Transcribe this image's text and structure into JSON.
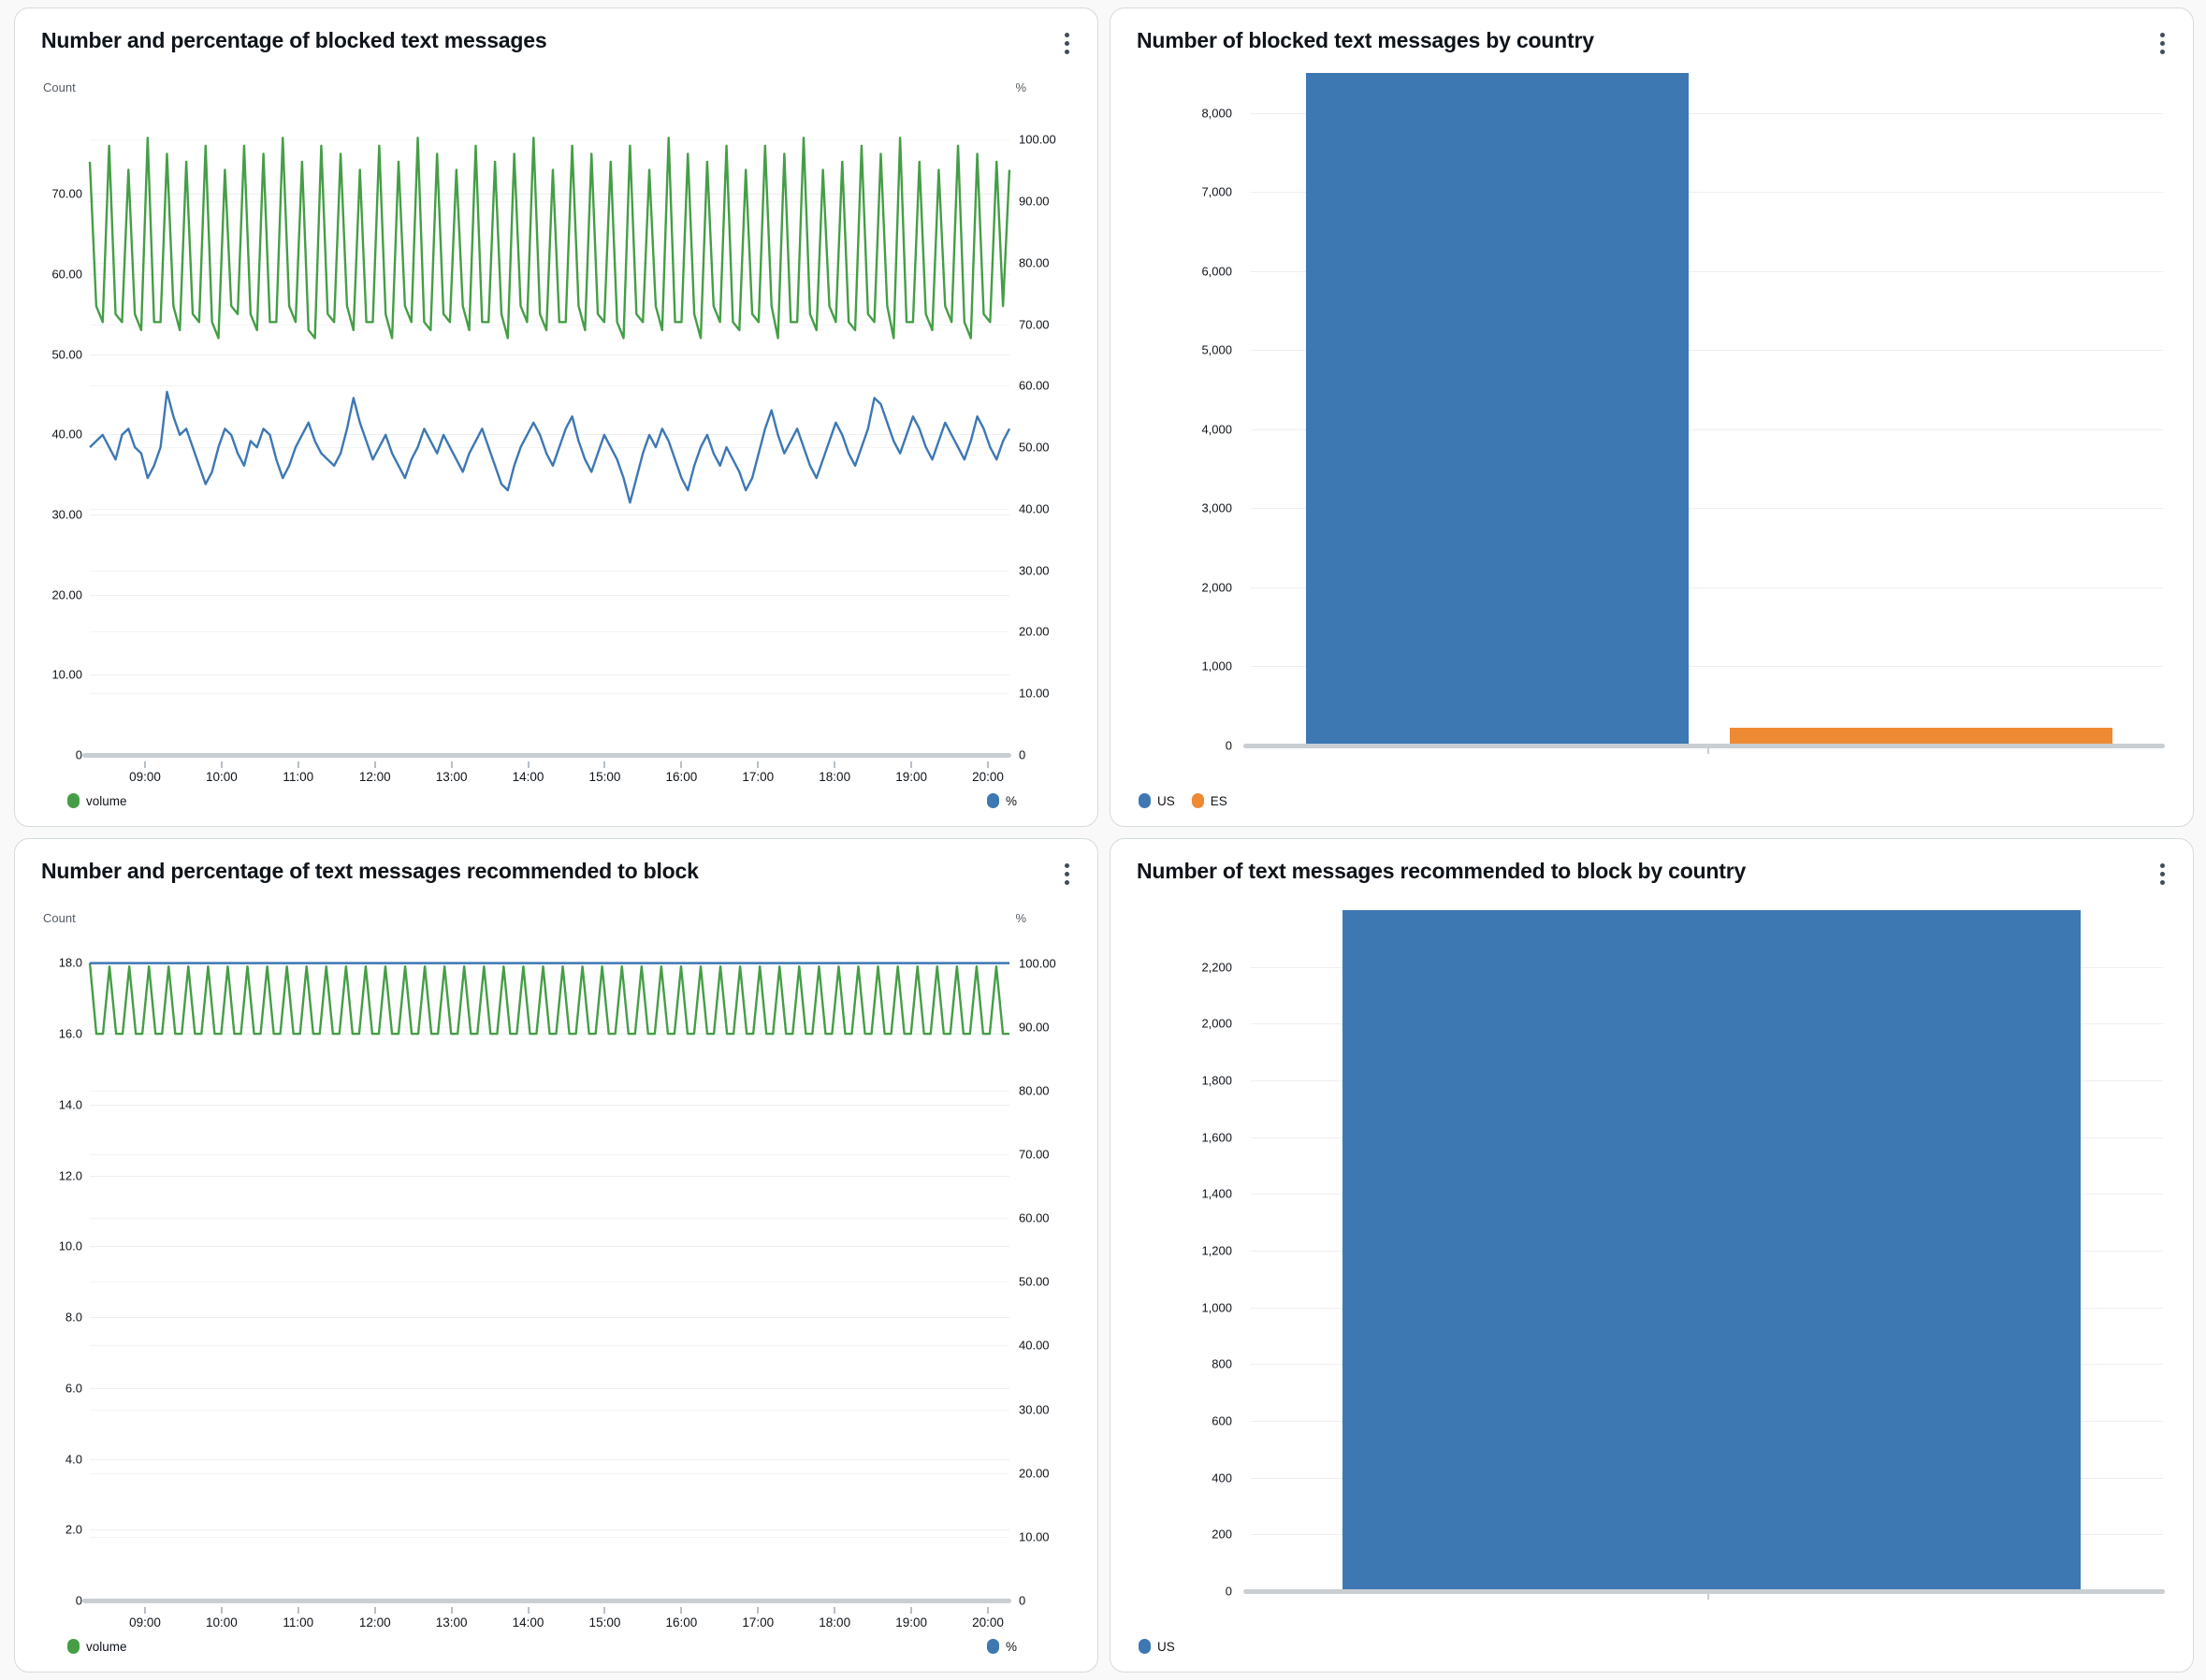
{
  "chart_data": [
    {
      "type": "line",
      "title": "Number and percentage of blocked text messages",
      "left_axis": {
        "label": "Count",
        "max": 81,
        "ticks": [
          {
            "value": 70,
            "label": "70.00"
          },
          {
            "value": 60,
            "label": "60.00"
          },
          {
            "value": 50,
            "label": "50.00"
          },
          {
            "value": 40,
            "label": "40.00"
          },
          {
            "value": 30,
            "label": "30.00"
          },
          {
            "value": 20,
            "label": "20.00"
          },
          {
            "value": 10,
            "label": "10.00"
          },
          {
            "value": 0,
            "label": "0"
          }
        ]
      },
      "right_axis": {
        "label": "%",
        "max": 105.5,
        "ticks": [
          {
            "value": 100,
            "label": "100.00"
          },
          {
            "value": 90,
            "label": "90.00"
          },
          {
            "value": 80,
            "label": "80.00"
          },
          {
            "value": 70,
            "label": "70.00"
          },
          {
            "value": 60,
            "label": "60.00"
          },
          {
            "value": 50,
            "label": "50.00"
          },
          {
            "value": 40,
            "label": "40.00"
          },
          {
            "value": 30,
            "label": "30.00"
          },
          {
            "value": 20,
            "label": "20.00"
          },
          {
            "value": 10,
            "label": "10.00"
          },
          {
            "value": 0,
            "label": "0"
          }
        ]
      },
      "x_tick_labels": [
        "09:00",
        "10:00",
        "11:00",
        "12:00",
        "13:00",
        "14:00",
        "15:00",
        "16:00",
        "17:00",
        "18:00",
        "19:00",
        "20:00"
      ],
      "x_first_pct": 6.0,
      "x_step_pct": 8.333,
      "series": [
        {
          "name": "volume",
          "axis": "left",
          "color": "#459e46",
          "values": [
            74,
            56,
            54,
            76,
            55,
            54,
            73,
            55,
            53,
            77,
            54,
            54,
            75,
            56,
            53,
            74,
            55,
            54,
            76,
            54,
            52,
            73,
            56,
            55,
            76,
            55,
            53,
            75,
            54,
            54,
            77,
            56,
            54,
            74,
            53,
            52,
            76,
            55,
            54,
            75,
            56,
            53,
            73,
            54,
            54,
            76,
            55,
            52,
            74,
            56,
            54,
            77,
            54,
            53,
            75,
            55,
            54,
            73,
            56,
            53,
            76,
            54,
            54,
            74,
            55,
            52,
            75,
            56,
            54,
            77,
            55,
            53,
            73,
            54,
            54,
            76,
            56,
            53,
            75,
            55,
            54,
            74,
            54,
            52,
            76,
            55,
            54,
            73,
            56,
            53,
            77,
            54,
            54,
            75,
            55,
            52,
            74,
            56,
            54,
            76,
            54,
            53,
            73,
            55,
            54,
            76,
            56,
            52,
            75,
            54,
            54,
            77,
            55,
            53,
            73,
            56,
            54,
            74,
            54,
            53,
            76,
            55,
            54,
            75,
            56,
            52,
            77,
            54,
            54,
            74,
            55,
            53,
            73,
            56,
            54,
            76,
            54,
            52,
            75,
            55,
            54,
            74,
            56,
            73
          ]
        },
        {
          "name": "%",
          "axis": "right",
          "color": "#3d78b3",
          "values": [
            50,
            51,
            52,
            50,
            48,
            52,
            53,
            50,
            49,
            45,
            47,
            50,
            59,
            55,
            52,
            53,
            50,
            47,
            44,
            46,
            50,
            53,
            52,
            49,
            47,
            51,
            50,
            53,
            52,
            48,
            45,
            47,
            50,
            52,
            54,
            51,
            49,
            48,
            47,
            49,
            53,
            58,
            54,
            51,
            48,
            50,
            52,
            49,
            47,
            45,
            48,
            50,
            53,
            51,
            49,
            52,
            50,
            48,
            46,
            49,
            51,
            53,
            50,
            47,
            44,
            43,
            47,
            50,
            52,
            54,
            52,
            49,
            47,
            50,
            53,
            55,
            51,
            48,
            46,
            49,
            52,
            50,
            48,
            45,
            41,
            45,
            49,
            52,
            50,
            53,
            51,
            48,
            45,
            43,
            47,
            50,
            52,
            49,
            47,
            50,
            48,
            46,
            43,
            45,
            49,
            53,
            56,
            52,
            49,
            51,
            53,
            50,
            47,
            45,
            48,
            51,
            54,
            52,
            49,
            47,
            50,
            53,
            58,
            57,
            54,
            51,
            49,
            52,
            55,
            53,
            50,
            48,
            51,
            54,
            52,
            50,
            48,
            51,
            55,
            53,
            50,
            48,
            51,
            53
          ]
        }
      ],
      "legend": [
        {
          "label": "volume",
          "color": "#459e46",
          "position": "left"
        },
        {
          "label": "%",
          "color": "#3d78b3",
          "position": "right"
        }
      ]
    },
    {
      "type": "bar",
      "title": "Number of blocked text messages by country",
      "categories": [
        "US",
        "ES"
      ],
      "values": [
        8500,
        230
      ],
      "colors": [
        "#3d78b3",
        "#ee8934"
      ],
      "bar_centers_pct": [
        27,
        73.5
      ],
      "bar_width_pct": 42,
      "axis": {
        "max": 8600,
        "ticks": [
          {
            "value": 8000,
            "label": "8,000"
          },
          {
            "value": 7000,
            "label": "7,000"
          },
          {
            "value": 6000,
            "label": "6,000"
          },
          {
            "value": 5000,
            "label": "5,000"
          },
          {
            "value": 4000,
            "label": "4,000"
          },
          {
            "value": 3000,
            "label": "3,000"
          },
          {
            "value": 2000,
            "label": "2,000"
          },
          {
            "value": 1000,
            "label": "1,000"
          },
          {
            "value": 0,
            "label": "0"
          }
        ]
      },
      "legend": [
        {
          "label": "US",
          "color": "#3d78b3",
          "position": "left"
        },
        {
          "label": "ES",
          "color": "#ee8934",
          "position": "left"
        }
      ]
    },
    {
      "type": "line",
      "title": "Number and percentage of text messages recommended to block",
      "left_axis": {
        "label": "Count",
        "max": 18.75,
        "ticks": [
          {
            "value": 18,
            "label": "18.0"
          },
          {
            "value": 16,
            "label": "16.0"
          },
          {
            "value": 14,
            "label": "14.0"
          },
          {
            "value": 12,
            "label": "12.0"
          },
          {
            "value": 10,
            "label": "10.0"
          },
          {
            "value": 8,
            "label": "8.0"
          },
          {
            "value": 6,
            "label": "6.0"
          },
          {
            "value": 4,
            "label": "4.0"
          },
          {
            "value": 2,
            "label": "2.0"
          },
          {
            "value": 0,
            "label": "0"
          }
        ]
      },
      "right_axis": {
        "label": "%",
        "max": 104.2,
        "ticks": [
          {
            "value": 100,
            "label": "100.00"
          },
          {
            "value": 90,
            "label": "90.00"
          },
          {
            "value": 80,
            "label": "80.00"
          },
          {
            "value": 70,
            "label": "70.00"
          },
          {
            "value": 60,
            "label": "60.00"
          },
          {
            "value": 50,
            "label": "50.00"
          },
          {
            "value": 40,
            "label": "40.00"
          },
          {
            "value": 30,
            "label": "30.00"
          },
          {
            "value": 20,
            "label": "20.00"
          },
          {
            "value": 10,
            "label": "10.00"
          },
          {
            "value": 0,
            "label": "0"
          }
        ]
      },
      "x_tick_labels": [
        "09:00",
        "10:00",
        "11:00",
        "12:00",
        "13:00",
        "14:00",
        "15:00",
        "16:00",
        "17:00",
        "18:00",
        "19:00",
        "20:00"
      ],
      "x_first_pct": 6.0,
      "x_step_pct": 8.333,
      "series": [
        {
          "name": "volume",
          "axis": "left",
          "color": "#459e46",
          "values": [
            18,
            16,
            16,
            17.9,
            16,
            16,
            17.9,
            16,
            16,
            17.9,
            16,
            16,
            17.9,
            16,
            16,
            17.9,
            16,
            16,
            17.9,
            16,
            16,
            17.9,
            16,
            16,
            17.9,
            16,
            16,
            17.9,
            16,
            16,
            17.9,
            16,
            16,
            17.9,
            16,
            16,
            17.9,
            16,
            16,
            17.9,
            16,
            16,
            17.9,
            16,
            16,
            17.9,
            16,
            16,
            17.9,
            16,
            16,
            17.9,
            16,
            16,
            17.9,
            16,
            16,
            17.9,
            16,
            16,
            17.9,
            16,
            16,
            17.9,
            16,
            16,
            17.9,
            16,
            16,
            17.9,
            16,
            16,
            17.9,
            16,
            16,
            17.9,
            16,
            16,
            17.9,
            16,
            16,
            17.9,
            16,
            16,
            17.9,
            16,
            16,
            17.9,
            16,
            16,
            17.9,
            16,
            16,
            17.9,
            16,
            16,
            17.9,
            16,
            16,
            17.9,
            16,
            16,
            17.9,
            16,
            16,
            17.9,
            16,
            16,
            17.9,
            16,
            16,
            17.9,
            16,
            16,
            17.9,
            16,
            16,
            17.9,
            16,
            16,
            17.9,
            16,
            16,
            17.9,
            16,
            16,
            17.9,
            16,
            16,
            17.9,
            16,
            16,
            17.9,
            16,
            16,
            17.9,
            16,
            16,
            17.9,
            16,
            16
          ]
        },
        {
          "name": "%",
          "axis": "right",
          "color": "#3d78b3",
          "values": [
            100,
            100,
            100,
            100,
            100,
            100,
            100,
            100,
            100,
            100,
            100,
            100,
            100,
            100,
            100,
            100,
            100,
            100,
            100,
            100,
            100,
            100,
            100,
            100,
            100,
            100,
            100,
            100,
            100,
            100,
            100,
            100,
            100,
            100,
            100,
            100,
            100,
            100,
            100,
            100,
            100,
            100,
            100,
            100,
            100,
            100,
            100,
            100,
            100,
            100,
            100,
            100,
            100,
            100,
            100,
            100,
            100,
            100,
            100,
            100,
            100,
            100,
            100,
            100,
            100,
            100,
            100,
            100,
            100,
            100,
            100,
            100,
            100,
            100,
            100,
            100,
            100,
            100,
            100,
            100,
            100,
            100,
            100,
            100,
            100,
            100,
            100,
            100,
            100,
            100,
            100,
            100,
            100,
            100,
            100,
            100,
            100,
            100,
            100,
            100,
            100,
            100,
            100,
            100,
            100,
            100,
            100,
            100,
            100,
            100,
            100,
            100,
            100,
            100,
            100,
            100,
            100,
            100,
            100,
            100,
            100,
            100,
            100,
            100,
            100,
            100,
            100,
            100,
            100,
            100,
            100,
            100,
            100,
            100,
            100,
            100,
            100,
            100,
            100,
            100,
            100,
            100,
            100,
            100
          ]
        }
      ],
      "legend": [
        {
          "label": "volume",
          "color": "#459e46",
          "position": "left"
        },
        {
          "label": "%",
          "color": "#3d78b3",
          "position": "right"
        }
      ]
    },
    {
      "type": "bar",
      "title": "Number of text messages recommended to block by country",
      "categories": [
        "US"
      ],
      "values": [
        2400
      ],
      "colors": [
        "#3d78b3"
      ],
      "bar_centers_pct": [
        50.5
      ],
      "bar_width_pct": 81,
      "axis": {
        "max": 2450,
        "ticks": [
          {
            "value": 2200,
            "label": "2,200"
          },
          {
            "value": 2000,
            "label": "2,000"
          },
          {
            "value": 1800,
            "label": "1,800"
          },
          {
            "value": 1600,
            "label": "1,600"
          },
          {
            "value": 1400,
            "label": "1,400"
          },
          {
            "value": 1200,
            "label": "1,200"
          },
          {
            "value": 1000,
            "label": "1,000"
          },
          {
            "value": 800,
            "label": "800"
          },
          {
            "value": 600,
            "label": "600"
          },
          {
            "value": 400,
            "label": "400"
          },
          {
            "value": 200,
            "label": "200"
          },
          {
            "value": 0,
            "label": "0"
          }
        ]
      },
      "legend": [
        {
          "label": "US",
          "color": "#3d78b3",
          "position": "left"
        }
      ]
    }
  ]
}
